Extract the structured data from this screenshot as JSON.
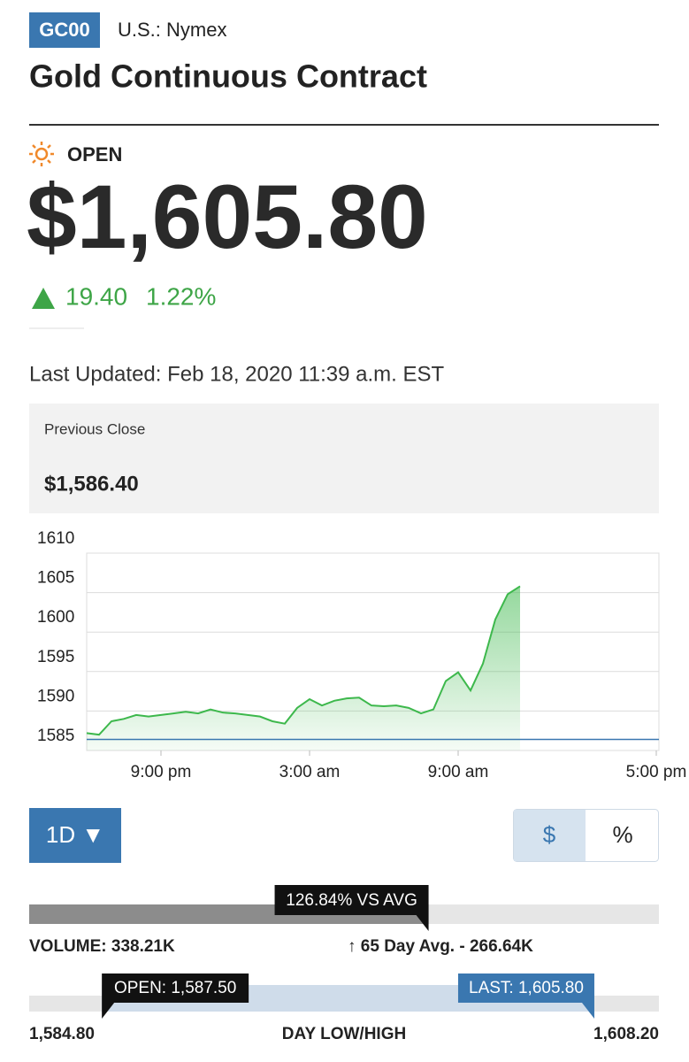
{
  "header": {
    "symbol": "GC00",
    "exchange": "U.S.: Nymex",
    "title": "Gold Continuous Contract"
  },
  "status": "OPEN",
  "price": "$1,605.80",
  "change": "19.40",
  "change_percent": "1.22%",
  "last_updated": "Last Updated: Feb 18, 2020 11:39 a.m. EST",
  "previous_close": {
    "label": "Previous Close",
    "value": "$1,586.40"
  },
  "chart_data": {
    "type": "line",
    "categories": [
      null,
      null,
      null,
      null,
      null,
      null,
      "9:00 pm",
      null,
      null,
      null,
      null,
      null,
      null,
      null,
      null,
      null,
      null,
      null,
      "3:00 am",
      null,
      null,
      null,
      null,
      null,
      null,
      null,
      null,
      null,
      null,
      null,
      "9:00 am",
      null,
      null,
      null,
      null,
      null,
      null,
      null,
      null,
      null,
      null,
      null,
      null,
      null,
      null,
      null,
      "5:00 pm"
    ],
    "values": [
      1587.2,
      1587.0,
      1588.7,
      1589.0,
      1589.5,
      1589.3,
      1589.5,
      1589.7,
      1589.9,
      1589.7,
      1590.2,
      1589.8,
      1589.7,
      1589.5,
      1589.3,
      1588.7,
      1588.4,
      1590.4,
      1591.5,
      1590.7,
      1591.3,
      1591.6,
      1591.7,
      1590.7,
      1590.6,
      1590.7,
      1590.4,
      1589.7,
      1590.2,
      1593.8,
      1594.9,
      1592.6,
      1596.0,
      1601.6,
      1604.8,
      1605.8,
      null,
      null,
      null,
      null,
      null,
      null,
      null,
      null,
      null,
      null,
      null
    ],
    "color": "#3db84c",
    "reference_line": 1586.4,
    "reference_color": "#3a77b0",
    "ylim": [
      1585,
      1610
    ],
    "yticks": [
      1585,
      1590,
      1595,
      1600,
      1605,
      1610
    ],
    "grid": true
  },
  "controls": {
    "range": "1D ▼",
    "currency": "$",
    "percent": "%"
  },
  "volume": {
    "value": 338210,
    "label": "VOLUME: 338.21K",
    "average": {
      "value": 266640,
      "label": "↑ 65 Day Avg. - 266.64K"
    },
    "vs_avg": {
      "value": 126.84,
      "label": "126.84% VS AVG"
    }
  },
  "day_range": {
    "low": {
      "value": 1584.8,
      "label": "1,584.80"
    },
    "high": {
      "value": 1608.2,
      "label": "1,608.20"
    },
    "open": {
      "value": 1587.5,
      "label": "OPEN: 1,587.50"
    },
    "last": {
      "value": 1605.8,
      "label": "LAST: 1,605.80"
    },
    "caption": "DAY LOW/HIGH"
  }
}
